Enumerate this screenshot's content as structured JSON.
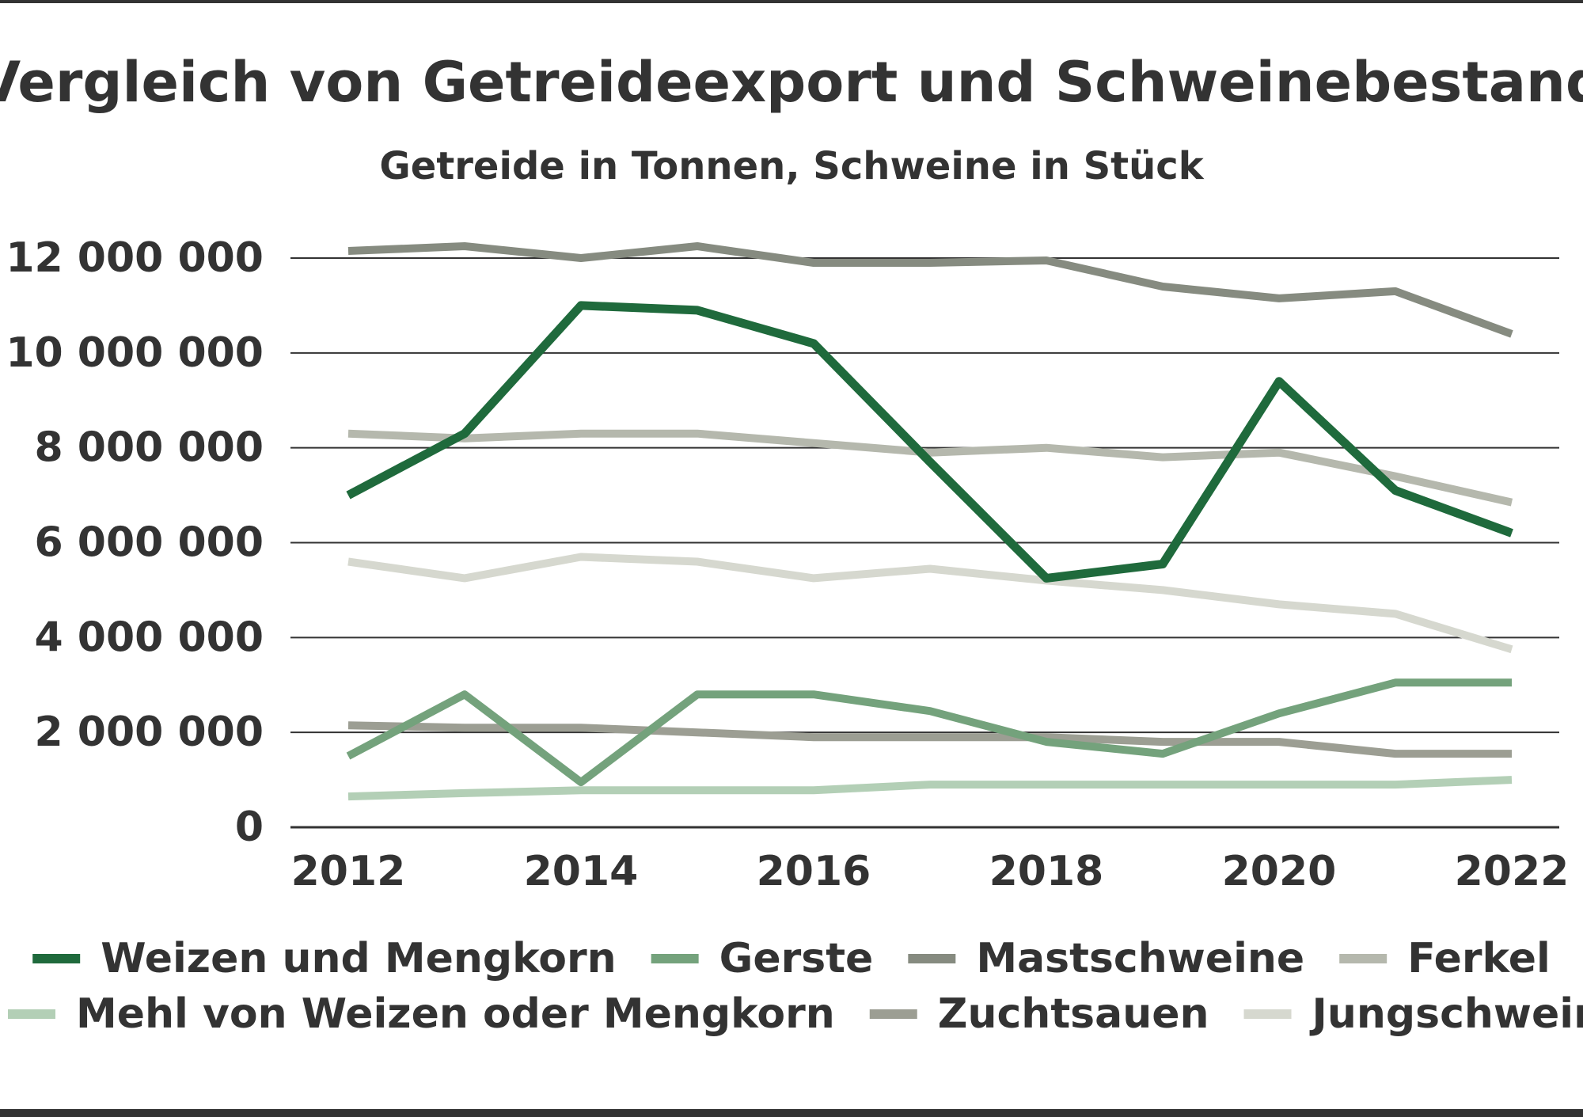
{
  "chart_data": {
    "type": "line",
    "title": "Vergleich von Getreideexport und Schweinebestand",
    "subtitle": "Getreide in Tonnen, Schweine in Stück",
    "xlabel": "",
    "ylabel": "",
    "x": [
      2012,
      2013,
      2014,
      2015,
      2016,
      2017,
      2018,
      2019,
      2020,
      2021,
      2022
    ],
    "x_ticks": [
      "2012",
      "2014",
      "2016",
      "2018",
      "2020",
      "2022"
    ],
    "y_ticks": [
      "0",
      "2 000 000",
      "4 000 000",
      "6 000 000",
      "8 000 000",
      "10 000 000",
      "12 000 000"
    ],
    "xlim": [
      2012,
      2022
    ],
    "ylim": [
      0,
      12000000
    ],
    "grid": true,
    "legend_position": "bottom",
    "series": [
      {
        "name": "Mastschweine",
        "color": "#868b80",
        "values": [
          12150000,
          12250000,
          12000000,
          12250000,
          11900000,
          11900000,
          11950000,
          11400000,
          11150000,
          11300000,
          10400000
        ]
      },
      {
        "name": "Ferkel",
        "color": "#b5b8ad",
        "values": [
          8300000,
          8200000,
          8300000,
          8300000,
          8100000,
          7900000,
          8000000,
          7800000,
          7900000,
          7400000,
          6850000
        ]
      },
      {
        "name": "Jungschweine",
        "color": "#d6d8cf",
        "values": [
          5600000,
          5250000,
          5700000,
          5600000,
          5250000,
          5450000,
          5200000,
          5000000,
          4700000,
          4500000,
          3750000
        ]
      },
      {
        "name": "Zuchtsauen",
        "color": "#9c9e93",
        "values": [
          2150000,
          2100000,
          2100000,
          2000000,
          1900000,
          1900000,
          1900000,
          1800000,
          1800000,
          1550000,
          1550000
        ]
      },
      {
        "name": "Mehl von Weizen oder Mengkorn",
        "color": "#b3cfb6",
        "values": [
          650000,
          720000,
          780000,
          780000,
          780000,
          900000,
          900000,
          900000,
          900000,
          900000,
          1000000
        ]
      },
      {
        "name": "Gerste",
        "color": "#74a27c",
        "values": [
          1500000,
          2800000,
          950000,
          2800000,
          2800000,
          2450000,
          1800000,
          1550000,
          2400000,
          3050000,
          3050000
        ]
      },
      {
        "name": "Weizen und Mengkorn",
        "color": "#1f6a3c",
        "values": [
          7000000,
          8300000,
          11000000,
          10900000,
          10200000,
          7700000,
          5250000,
          5550000,
          9400000,
          7100000,
          6200000
        ]
      }
    ],
    "legend": [
      "Weizen und Mengkorn",
      "Gerste",
      "Mastschweine",
      "Ferkel",
      "Mehl von Weizen oder Mengkorn",
      "Zuchtsauen",
      "Jungschweine"
    ]
  }
}
